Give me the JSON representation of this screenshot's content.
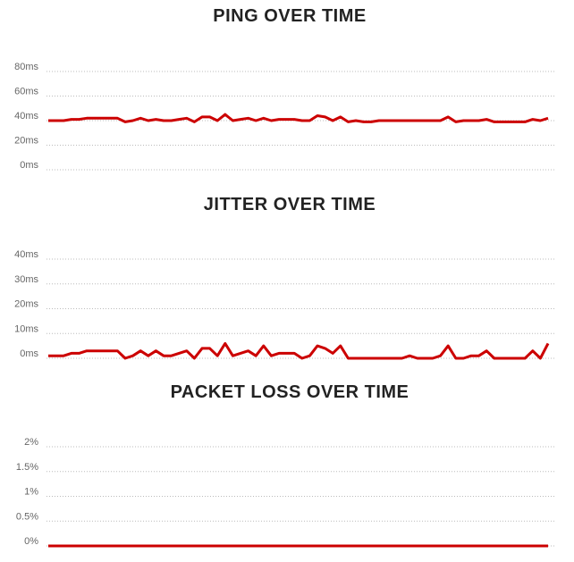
{
  "chart_data": [
    {
      "type": "line",
      "title": "PING OVER TIME",
      "color": "#cc0000",
      "grid": true,
      "ylim": [
        0,
        80
      ],
      "yticks": [
        {
          "value": 0,
          "label": "0ms"
        },
        {
          "value": 20,
          "label": "20ms"
        },
        {
          "value": 40,
          "label": "40ms"
        },
        {
          "value": 60,
          "label": "60ms"
        },
        {
          "value": 80,
          "label": "80ms"
        }
      ],
      "values": [
        40,
        40,
        40,
        41,
        41,
        42,
        42,
        42,
        42,
        42,
        39,
        40,
        42,
        40,
        41,
        40,
        40,
        41,
        42,
        39,
        43,
        43,
        40,
        45,
        40,
        41,
        42,
        40,
        42,
        40,
        41,
        41,
        41,
        40,
        40,
        44,
        43,
        40,
        43,
        39,
        40,
        39,
        39,
        40,
        40,
        40,
        40,
        40,
        40,
        40,
        40,
        40,
        43,
        39,
        40,
        40,
        40,
        41,
        39,
        39,
        39,
        39,
        39,
        41,
        40,
        42
      ]
    },
    {
      "type": "line",
      "title": "JITTER OVER TIME",
      "color": "#cc0000",
      "grid": true,
      "ylim": [
        0,
        40
      ],
      "yticks": [
        {
          "value": 0,
          "label": "0ms"
        },
        {
          "value": 10,
          "label": "10ms"
        },
        {
          "value": 20,
          "label": "20ms"
        },
        {
          "value": 30,
          "label": "30ms"
        },
        {
          "value": 40,
          "label": "40ms"
        }
      ],
      "values": [
        1,
        1,
        1,
        2,
        2,
        3,
        3,
        3,
        3,
        3,
        0,
        1,
        3,
        1,
        3,
        1,
        1,
        2,
        3,
        0,
        4,
        4,
        1,
        6,
        1,
        2,
        3,
        1,
        5,
        1,
        2,
        2,
        2,
        0,
        1,
        5,
        4,
        2,
        5,
        0,
        0,
        0,
        0,
        0,
        0,
        0,
        0,
        1,
        0,
        0,
        0,
        1,
        5,
        0,
        0,
        1,
        1,
        3,
        0,
        0,
        0,
        0,
        0,
        3,
        0,
        6
      ]
    },
    {
      "type": "line",
      "title": "PACKET LOSS OVER TIME",
      "color": "#cc0000",
      "grid": true,
      "ylim": [
        0,
        2
      ],
      "yticks": [
        {
          "value": 0,
          "label": "0%"
        },
        {
          "value": 0.5,
          "label": "0.5%"
        },
        {
          "value": 1,
          "label": "1%"
        },
        {
          "value": 1.5,
          "label": "1.5%"
        },
        {
          "value": 2,
          "label": "2%"
        }
      ],
      "values": [
        0,
        0,
        0,
        0,
        0,
        0,
        0,
        0,
        0,
        0,
        0,
        0,
        0,
        0,
        0,
        0,
        0,
        0,
        0,
        0,
        0,
        0,
        0,
        0,
        0,
        0,
        0,
        0,
        0,
        0,
        0,
        0,
        0,
        0,
        0,
        0,
        0,
        0,
        0,
        0,
        0,
        0,
        0,
        0,
        0,
        0,
        0,
        0,
        0,
        0,
        0,
        0,
        0,
        0,
        0,
        0,
        0,
        0,
        0,
        0,
        0,
        0,
        0,
        0,
        0,
        0
      ]
    }
  ]
}
